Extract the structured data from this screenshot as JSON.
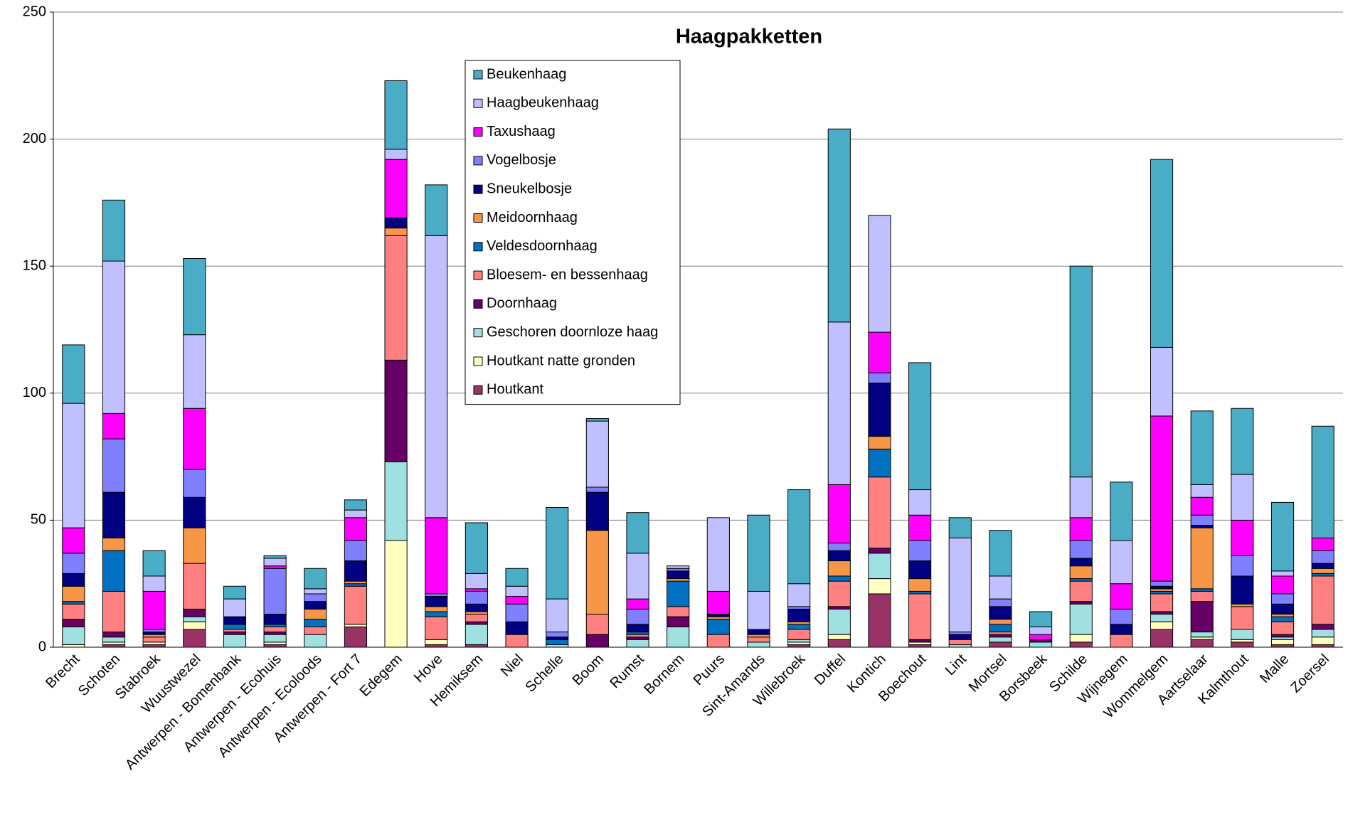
{
  "chart_data": {
    "type": "stacked_bar",
    "title": "Haagpakketten",
    "categories": [
      "Brecht",
      "Schoten",
      "Stabroek",
      "Wuustwezel",
      "Antwerpen - Bomenbank",
      "Antwerpen - Ecohuis",
      "Antwerpen - Ecoloods",
      "Antwerpen - Fort 7",
      "Edegem",
      "Hove",
      "Hemiksem",
      "Niel",
      "Schelle",
      "Boom",
      "Rumst",
      "Bornem",
      "Puurs",
      "Sint-Amands",
      "Willebroek",
      "Duffel",
      "Kontich",
      "Boechout",
      "Lint",
      "Mortsel",
      "Borsbeek",
      "Schilde",
      "Wijnegem",
      "Wommelgem",
      "Aartselaar",
      "Kalmthout",
      "Malle",
      "Zoersel"
    ],
    "series": [
      {
        "name": "Houtkant",
        "color": "#993366",
        "values": [
          0,
          1,
          1,
          7,
          0,
          1,
          0,
          8,
          0,
          1,
          1,
          0,
          0,
          0,
          0,
          0,
          0,
          0,
          1,
          3,
          21,
          1,
          0,
          2,
          0,
          2,
          0,
          7,
          3,
          2,
          1,
          1
        ]
      },
      {
        "name": "Houtkant natte gronden",
        "color": "#ffffc0",
        "values": [
          1,
          1,
          1,
          3,
          0,
          1,
          0,
          1,
          42,
          2,
          0,
          0,
          0,
          0,
          0,
          0,
          0,
          0,
          1,
          2,
          6,
          1,
          0,
          0,
          0,
          3,
          0,
          3,
          1,
          1,
          2,
          3
        ]
      },
      {
        "name": "Geschoren doornloze haag",
        "color": "#a0e0e0",
        "values": [
          7,
          2,
          0,
          2,
          5,
          3,
          5,
          0,
          31,
          0,
          8,
          0,
          1,
          0,
          3,
          8,
          0,
          2,
          1,
          10,
          10,
          0,
          1,
          2,
          2,
          12,
          0,
          3,
          2,
          4,
          1,
          3
        ]
      },
      {
        "name": "Doornhaag",
        "color": "#660066",
        "values": [
          3,
          2,
          0,
          3,
          1,
          1,
          0,
          0,
          40,
          0,
          1,
          0,
          0,
          5,
          1,
          4,
          0,
          0,
          0,
          1,
          2,
          1,
          0,
          1,
          1,
          1,
          0,
          1,
          12,
          0,
          1,
          2
        ]
      },
      {
        "name": "Bloesem- en bessenhaag",
        "color": "#ff8080",
        "values": [
          6,
          16,
          2,
          18,
          1,
          2,
          3,
          15,
          49,
          9,
          3,
          5,
          0,
          8,
          1,
          4,
          5,
          2,
          4,
          10,
          28,
          18,
          2,
          1,
          0,
          8,
          5,
          7,
          4,
          9,
          5,
          19
        ]
      },
      {
        "name": "Veldesdoornhaag",
        "color": "#0070c0",
        "values": [
          1,
          16,
          0,
          0,
          2,
          1,
          3,
          1,
          0,
          2,
          0,
          0,
          2,
          0,
          1,
          10,
          6,
          0,
          2,
          2,
          11,
          1,
          0,
          3,
          0,
          1,
          0,
          1,
          1,
          0,
          2,
          1
        ]
      },
      {
        "name": "Meidoornhaag",
        "color": "#f79646",
        "values": [
          6,
          5,
          1,
          14,
          0,
          0,
          4,
          1,
          3,
          2,
          1,
          0,
          0,
          33,
          0,
          1,
          1,
          1,
          1,
          6,
          5,
          5,
          0,
          2,
          0,
          5,
          0,
          1,
          24,
          1,
          1,
          2
        ]
      },
      {
        "name": "Sneukelbosje",
        "color": "#000080",
        "values": [
          5,
          18,
          1,
          12,
          3,
          4,
          3,
          8,
          4,
          4,
          3,
          5,
          1,
          15,
          3,
          3,
          1,
          2,
          5,
          4,
          21,
          7,
          2,
          5,
          0,
          3,
          4,
          1,
          1,
          11,
          4,
          2
        ]
      },
      {
        "name": "Vogelbosje",
        "color": "#8080ff",
        "values": [
          8,
          21,
          1,
          11,
          0,
          18,
          3,
          8,
          0,
          1,
          5,
          7,
          2,
          2,
          6,
          1,
          0,
          0,
          1,
          3,
          4,
          8,
          1,
          3,
          0,
          7,
          6,
          2,
          4,
          8,
          4,
          5
        ]
      },
      {
        "name": "Taxushaag",
        "color": "#ff00ff",
        "values": [
          10,
          10,
          15,
          24,
          0,
          1,
          0,
          9,
          23,
          30,
          1,
          3,
          0,
          0,
          4,
          0,
          9,
          0,
          0,
          23,
          16,
          10,
          0,
          0,
          2,
          9,
          10,
          65,
          7,
          14,
          7,
          5
        ]
      },
      {
        "name": "Haagbeukenhaag",
        "color": "#c0c0ff",
        "values": [
          49,
          60,
          6,
          29,
          7,
          3,
          2,
          3,
          4,
          111,
          6,
          4,
          13,
          26,
          18,
          1,
          29,
          15,
          9,
          64,
          46,
          10,
          37,
          9,
          3,
          16,
          17,
          27,
          5,
          18,
          2,
          0
        ]
      },
      {
        "name": "Beukenhaag",
        "color": "#4bacc6",
        "values": [
          23,
          24,
          10,
          30,
          5,
          1,
          8,
          4,
          27,
          20,
          20,
          7,
          36,
          1,
          16,
          0,
          0,
          30,
          37,
          76,
          0,
          50,
          8,
          18,
          6,
          83,
          23,
          74,
          29,
          26,
          27,
          44
        ]
      }
    ],
    "ylim": [
      0,
      250
    ],
    "yticks": [
      0,
      50,
      100,
      150,
      200,
      250
    ],
    "grid": true,
    "legend": "upper center"
  }
}
